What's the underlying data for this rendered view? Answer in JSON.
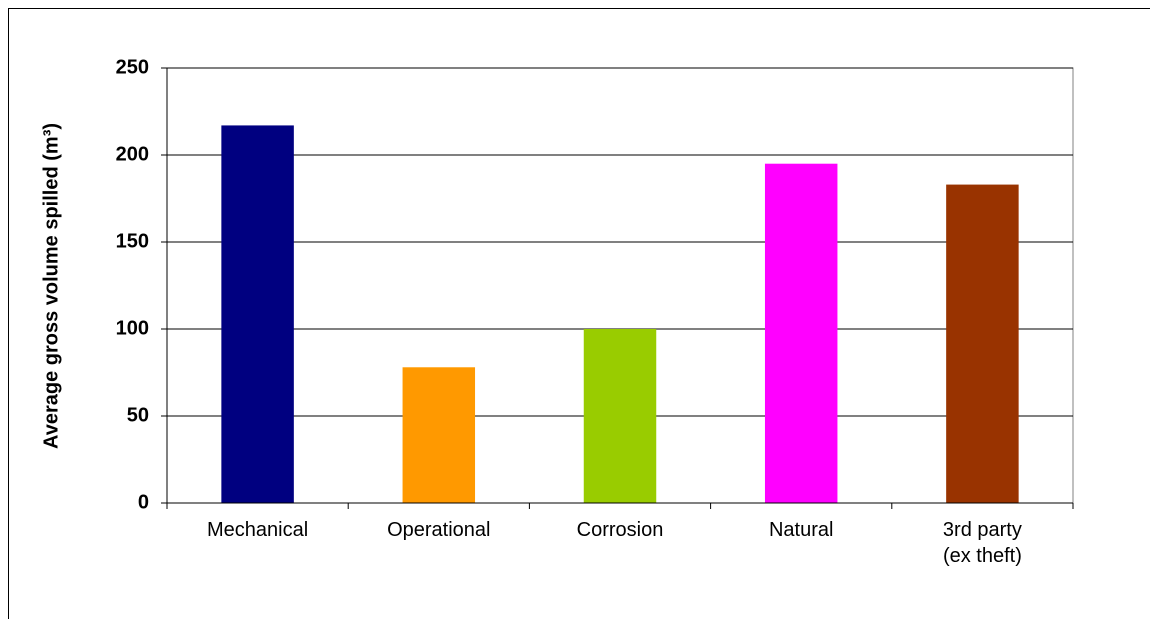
{
  "chart_data": {
    "type": "bar",
    "y_label": "Average gross volume spilled (m³)",
    "categories": [
      "Mechanical",
      "Operational",
      "Corrosion",
      "Natural",
      "3rd party\n(ex theft)"
    ],
    "values": [
      217,
      78,
      100,
      195,
      183
    ],
    "colors": [
      "#000080",
      "#ff9900",
      "#99cc00",
      "#ff00ff",
      "#993300"
    ],
    "ylim": [
      0,
      250
    ],
    "yticks": [
      0,
      50,
      100,
      150,
      200,
      250
    ],
    "grid": true
  }
}
